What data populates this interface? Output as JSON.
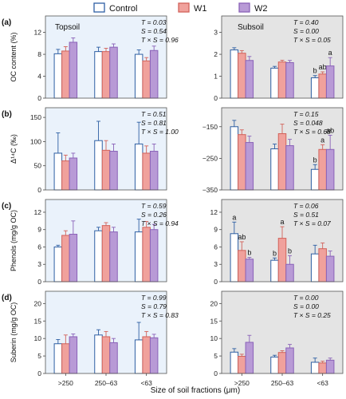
{
  "legend": [
    {
      "name": "Control",
      "fill": "#ffffff",
      "stroke": "#2e5fa3"
    },
    {
      "name": "W1",
      "fill": "#f0a19c",
      "stroke": "#d2625a"
    },
    {
      "name": "W2",
      "fill": "#b89ad6",
      "stroke": "#8a62b8"
    }
  ],
  "xlabel": "Size of soil fractions (μm)",
  "soil_titles": {
    "topsoil": "Topsoil",
    "subsoil": "Subsoil"
  },
  "colors": {
    "topsoil_bg": "#eaf2fb",
    "subsoil_bg": "#e4e4e4",
    "frame": "#555555",
    "err_control": "#2e5fa3",
    "err_w1": "#d2625a",
    "err_w2": "#8a62b8"
  },
  "chart_data": [
    {
      "type": "bar",
      "panel": "(a)",
      "ylabel": "OC content (%)",
      "categories": [
        ">250",
        "250–63",
        "<63"
      ],
      "topsoil": {
        "ylim": [
          0,
          15
        ],
        "ticks": [
          0,
          4,
          8,
          12
        ],
        "stats": [
          "T = 0.03",
          "S = 0.54",
          "T × S = 0.96"
        ],
        "series": [
          {
            "name": "Control",
            "values": [
              8.1,
              8.5,
              8.0
            ],
            "errors": [
              0.8,
              0.8,
              0.8
            ]
          },
          {
            "name": "W1",
            "values": [
              8.6,
              8.5,
              6.8
            ],
            "errors": [
              0.8,
              0.6,
              0.6
            ]
          },
          {
            "name": "W2",
            "values": [
              10.2,
              9.3,
              8.7
            ],
            "errors": [
              0.8,
              0.6,
              0.8
            ]
          }
        ],
        "letters": []
      },
      "subsoil": {
        "ylim": [
          0,
          3.75
        ],
        "ticks": [
          0,
          1,
          2,
          3
        ],
        "stats": [
          "T = 0.40",
          "S = 0.00",
          "T × S = 0.05"
        ],
        "series": [
          {
            "name": "Control",
            "values": [
              2.2,
              1.37,
              0.93
            ],
            "errors": [
              0.1,
              0.08,
              0.1
            ]
          },
          {
            "name": "W1",
            "values": [
              2.05,
              1.65,
              1.1
            ],
            "errors": [
              0.12,
              0.08,
              0.1
            ]
          },
          {
            "name": "W2",
            "values": [
              1.72,
              1.62,
              1.47
            ],
            "errors": [
              0.18,
              0.1,
              0.38
            ]
          }
        ],
        "letters": [
          [
            "",
            "",
            ""
          ],
          [
            "",
            "",
            ""
          ],
          [
            "b",
            "ab",
            "a"
          ]
        ]
      }
    },
    {
      "type": "bar",
      "panel": "(b)",
      "ylabel": "Δ¹⁴C (‰)",
      "categories": [
        ">250",
        "250–63",
        "<63"
      ],
      "topsoil": {
        "ylim": [
          0,
          170
        ],
        "ticks": [
          0,
          50,
          100,
          150
        ],
        "stats": [
          "T = 0.51",
          "S = 0.81",
          "T × S = 1.00"
        ],
        "series": [
          {
            "name": "Control",
            "values": [
              76,
              102,
              95
            ],
            "errors": [
              42,
              40,
              45
            ]
          },
          {
            "name": "W1",
            "values": [
              60,
              82,
              76
            ],
            "errors": [
              12,
              20,
              15
            ]
          },
          {
            "name": "W2",
            "values": [
              66,
              80,
              80
            ],
            "errors": [
              10,
              15,
              15
            ]
          }
        ],
        "letters": []
      },
      "subsoil": {
        "ylim": [
          -350,
          -90
        ],
        "ticks": [
          -350,
          -250,
          -150
        ],
        "stats": [
          "T = 0.15",
          "S = 0.048",
          "T × S = 0.68"
        ],
        "series": [
          {
            "name": "Control",
            "values": [
              -150,
              -220,
              -285
            ],
            "errors": [
              20,
              15,
              15
            ]
          },
          {
            "name": "W1",
            "values": [
              -175,
              -172,
              -222
            ],
            "errors": [
              15,
              30,
              15
            ]
          },
          {
            "name": "W2",
            "values": [
              -200,
              -210,
              -222
            ],
            "errors": [
              20,
              20,
              45
            ]
          }
        ],
        "letters": [
          [
            "",
            "",
            ""
          ],
          [
            "",
            "",
            ""
          ],
          [
            "b",
            "a",
            "ab"
          ]
        ]
      }
    },
    {
      "type": "bar",
      "panel": "(c)",
      "ylabel": "Phenols (mg/g OC)",
      "categories": [
        ">250",
        "250–63",
        "<63"
      ],
      "topsoil": {
        "ylim": [
          0,
          14.2
        ],
        "ticks": [
          0,
          3,
          6,
          9,
          12
        ],
        "stats": [
          "T = 0.59",
          "S = 0.26",
          "T × S = 0.94"
        ],
        "series": [
          {
            "name": "Control",
            "values": [
              6.0,
              8.8,
              8.6
            ],
            "errors": [
              0.3,
              0.6,
              2.2
            ]
          },
          {
            "name": "W1",
            "values": [
              8.0,
              9.7,
              9.4
            ],
            "errors": [
              0.8,
              0.5,
              1.0
            ]
          },
          {
            "name": "W2",
            "values": [
              8.2,
              8.6,
              9.0
            ],
            "errors": [
              2.3,
              0.8,
              0.9
            ]
          }
        ],
        "letters": []
      },
      "subsoil": {
        "ylim": [
          0,
          14.2
        ],
        "ticks": [
          0,
          3,
          6,
          9,
          12
        ],
        "stats": [
          "T = 0.06",
          "S = 0.51",
          "T × S = 0.07"
        ],
        "series": [
          {
            "name": "Control",
            "values": [
              8.3,
              3.7,
              4.8
            ],
            "errors": [
              2.0,
              0.4,
              1.5
            ]
          },
          {
            "name": "W1",
            "values": [
              5.4,
              7.5,
              5.7
            ],
            "errors": [
              1.5,
              2.0,
              1.0
            ]
          },
          {
            "name": "W2",
            "values": [
              3.9,
              3.0,
              4.4
            ],
            "errors": [
              0.3,
              1.5,
              0.9
            ]
          }
        ],
        "letters": [
          [
            "a",
            "ab",
            "b"
          ],
          [
            "b",
            "a",
            "b"
          ],
          [
            "",
            "",
            ""
          ]
        ]
      }
    },
    {
      "type": "bar",
      "panel": "(d)",
      "ylabel": "Suberin (mg/g OC)",
      "categories": [
        ">250",
        "250–63",
        "<63"
      ],
      "topsoil": {
        "ylim": [
          0,
          23.5
        ],
        "ticks": [
          0,
          5,
          10,
          15,
          20
        ],
        "stats": [
          "T = 0.99",
          "S = 0.79",
          "T × S = 0.83"
        ],
        "series": [
          {
            "name": "Control",
            "values": [
              8.5,
              11.0,
              9.6
            ],
            "errors": [
              1.2,
              1.5,
              5.0
            ]
          },
          {
            "name": "W1",
            "values": [
              8.5,
              10.5,
              10.5
            ],
            "errors": [
              2.5,
              1.5,
              1.5
            ]
          },
          {
            "name": "W2",
            "values": [
              10.5,
              8.8,
              10.2
            ],
            "errors": [
              0.8,
              1.2,
              1.0
            ]
          }
        ],
        "letters": []
      },
      "subsoil": {
        "ylim": [
          0,
          23.5
        ],
        "ticks": [
          0,
          5,
          10,
          15,
          20
        ],
        "stats": [
          "T = 0.00",
          "S = 0.00",
          "T × S = 0.25"
        ],
        "series": [
          {
            "name": "Control",
            "values": [
              6.1,
              4.7,
              3.2
            ],
            "errors": [
              1.0,
              0.5,
              1.2
            ]
          },
          {
            "name": "W1",
            "values": [
              4.9,
              6.0,
              3.0
            ],
            "errors": [
              0.6,
              0.5,
              0.5
            ]
          },
          {
            "name": "W2",
            "values": [
              8.9,
              7.3,
              3.8
            ],
            "errors": [
              2.0,
              1.0,
              0.6
            ]
          }
        ],
        "letters": [
          [
            "",
            "",
            ""
          ],
          [
            "",
            "",
            ""
          ],
          [
            "",
            "",
            ""
          ]
        ]
      }
    }
  ]
}
